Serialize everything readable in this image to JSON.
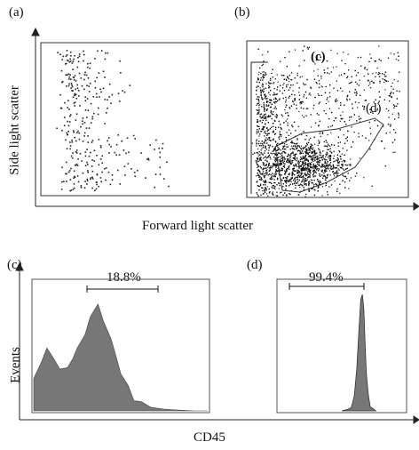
{
  "figure": {
    "top_ylabel": "Side light scatter",
    "top_xlabel": "Forward light scatter",
    "bottom_ylabel": "Events",
    "bottom_xlabel": "CD45"
  },
  "panels": [
    {
      "id": "a",
      "label": "(a)"
    },
    {
      "id": "b",
      "label": "(b)",
      "gate_labels": [
        "(c)",
        "(d)"
      ]
    },
    {
      "id": "c",
      "label": "(c)",
      "percent": "18.8%"
    },
    {
      "id": "d",
      "label": "(d)",
      "percent": "99.4%"
    }
  ],
  "chart_data": [
    {
      "panel": "a",
      "type": "scatter",
      "xlabel": "Forward light scatter",
      "ylabel": "Side light scatter",
      "xlim": [
        0,
        1023
      ],
      "ylim": [
        0,
        1023
      ],
      "description_points": "sparse cloud, most events at low forward scatter (50-300) and spread over side scatter 50-900"
    },
    {
      "panel": "b",
      "type": "scatter",
      "xlabel": "Forward light scatter",
      "ylabel": "Side light scatter",
      "xlim": [
        0,
        1023
      ],
      "ylim": [
        0,
        1023
      ],
      "gates": [
        {
          "name": "(c)",
          "type": "rectangle"
        },
        {
          "name": "(d)",
          "type": "polygon"
        }
      ],
      "dense_cluster_center": [
        450,
        250
      ]
    },
    {
      "panel": "c",
      "type": "area",
      "xlabel": "CD45",
      "ylabel": "Events",
      "xscale": "log",
      "xlim": [
        1,
        10000
      ],
      "marker_percent": 18.8,
      "x": [
        1,
        1.5,
        2,
        3,
        4,
        6,
        8,
        10,
        15,
        20,
        30,
        40,
        60,
        80,
        100,
        150,
        200,
        300,
        500,
        1000,
        2000,
        5000,
        10000
      ],
      "values": [
        40,
        60,
        70,
        55,
        45,
        50,
        60,
        70,
        85,
        105,
        120,
        105,
        80,
        60,
        45,
        25,
        15,
        8,
        4,
        2,
        1,
        0,
        0
      ]
    },
    {
      "panel": "d",
      "type": "area",
      "xlabel": "CD45",
      "ylabel": "Events",
      "xscale": "log",
      "xlim": [
        1,
        10000
      ],
      "marker_percent": 99.4,
      "x": [
        100,
        150,
        200,
        250,
        300,
        350,
        400,
        450,
        500,
        550,
        600,
        700,
        800,
        1000,
        1200
      ],
      "values": [
        0,
        2,
        8,
        25,
        60,
        110,
        155,
        170,
        150,
        100,
        55,
        22,
        10,
        3,
        0
      ]
    }
  ]
}
